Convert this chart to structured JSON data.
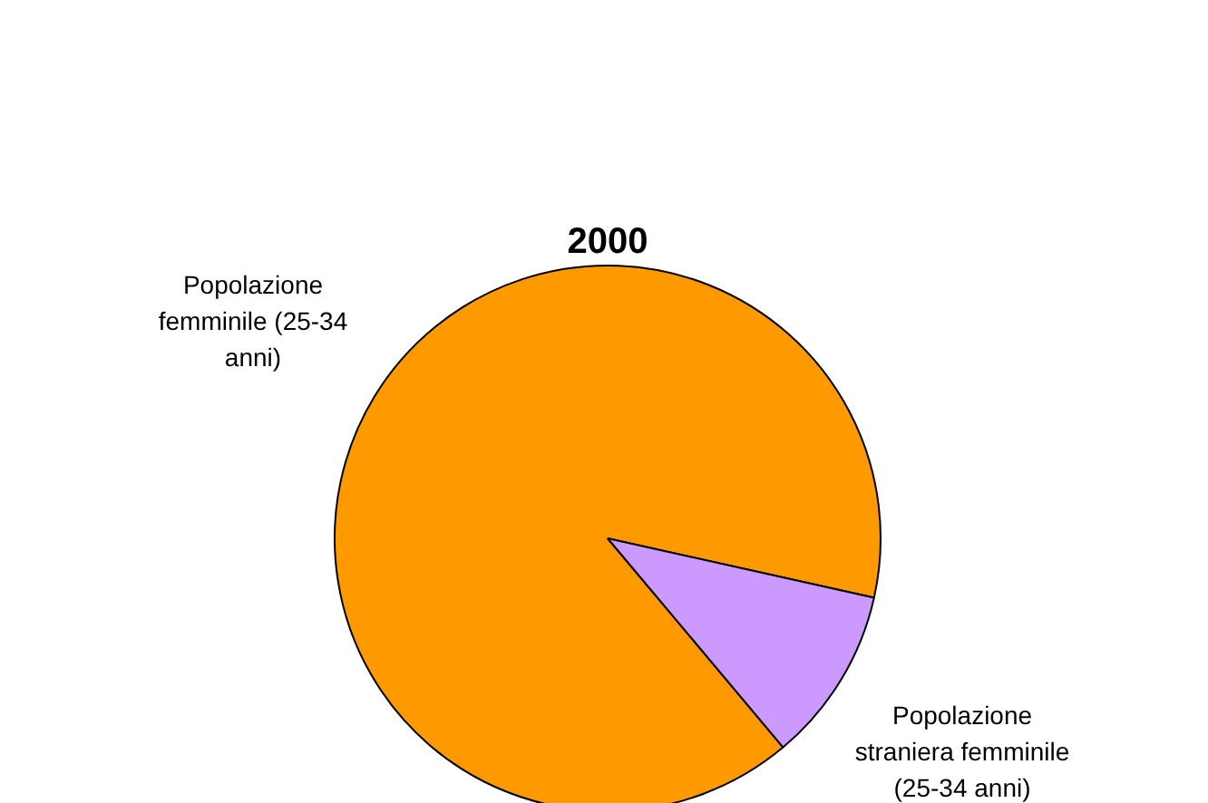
{
  "chart_data": {
    "type": "pie",
    "title": "2000",
    "categories": [
      "Popolazione femminile (25-34 anni)",
      "Popolazione straniera femminile (25-34 anni)"
    ],
    "values": [
      89.6,
      10.4
    ],
    "colors": [
      "#ff9900",
      "#cc99ff"
    ],
    "legend": false
  }
}
